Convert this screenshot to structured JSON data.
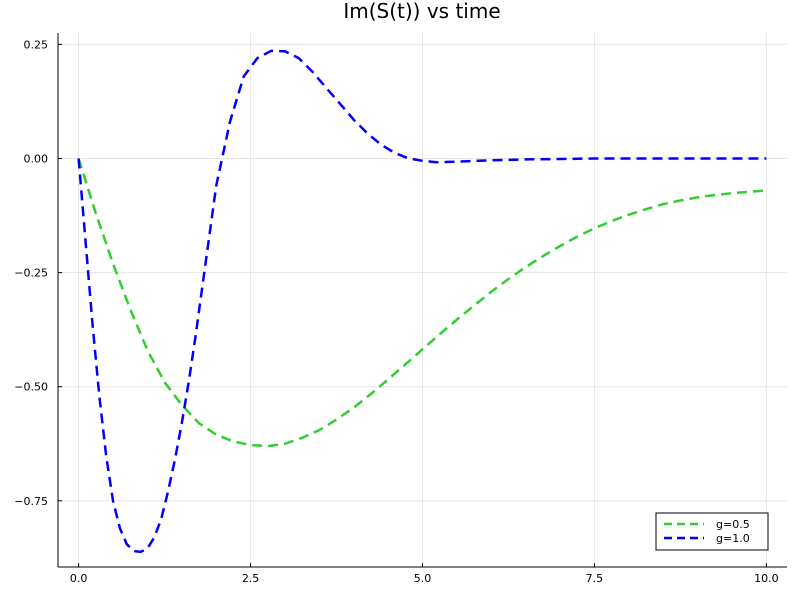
{
  "chart_data": {
    "type": "line",
    "title": "Im(S(t)) vs time",
    "xlabel": "",
    "ylabel": "",
    "xlim": [
      -0.3,
      10.3
    ],
    "ylim": [
      -0.895,
      0.275
    ],
    "x_ticks": [
      {
        "value": 0.0,
        "label": "0.0"
      },
      {
        "value": 2.5,
        "label": "2.5"
      },
      {
        "value": 5.0,
        "label": "5.0"
      },
      {
        "value": 7.5,
        "label": "7.5"
      },
      {
        "value": 10.0,
        "label": "10.0"
      }
    ],
    "y_ticks": [
      {
        "value": 0.25,
        "label": "0.25"
      },
      {
        "value": 0.0,
        "label": "0.00"
      },
      {
        "value": -0.25,
        "label": "−0.25"
      },
      {
        "value": -0.5,
        "label": "−0.50"
      },
      {
        "value": -0.75,
        "label": "−0.75"
      }
    ],
    "grid": true,
    "legend_position": "bottom-right",
    "series": [
      {
        "name": "g=0.5",
        "color": "#32cd32",
        "dash": "dashed",
        "x": [
          0.0,
          0.25,
          0.5,
          0.75,
          1.0,
          1.25,
          1.5,
          1.75,
          2.0,
          2.25,
          2.5,
          2.75,
          3.0,
          3.25,
          3.5,
          3.75,
          4.0,
          4.25,
          4.5,
          4.75,
          5.0,
          5.25,
          5.5,
          5.75,
          6.0,
          6.25,
          6.5,
          6.75,
          7.0,
          7.25,
          7.5,
          7.75,
          8.0,
          8.25,
          8.5,
          8.75,
          9.0,
          9.25,
          9.5,
          9.75,
          10.0
        ],
        "y": [
          0.0,
          -0.12,
          -0.23,
          -0.33,
          -0.42,
          -0.49,
          -0.54,
          -0.58,
          -0.605,
          -0.62,
          -0.628,
          -0.63,
          -0.625,
          -0.612,
          -0.595,
          -0.572,
          -0.546,
          -0.516,
          -0.484,
          -0.451,
          -0.418,
          -0.385,
          -0.353,
          -0.322,
          -0.292,
          -0.264,
          -0.238,
          -0.214,
          -0.192,
          -0.171,
          -0.153,
          -0.137,
          -0.123,
          -0.111,
          -0.1,
          -0.092,
          -0.085,
          -0.08,
          -0.076,
          -0.073,
          -0.07
        ]
      },
      {
        "name": "g=1.0",
        "color": "#0000ff",
        "dash": "dashed",
        "x": [
          0.0,
          0.1,
          0.2,
          0.3,
          0.4,
          0.5,
          0.6,
          0.7,
          0.8,
          0.9,
          1.0,
          1.1,
          1.2,
          1.3,
          1.4,
          1.5,
          1.6,
          1.7,
          1.8,
          1.9,
          2.0,
          2.2,
          2.4,
          2.6,
          2.8,
          3.0,
          3.2,
          3.4,
          3.6,
          3.8,
          4.0,
          4.2,
          4.4,
          4.6,
          4.8,
          5.0,
          5.2,
          5.5,
          5.8,
          6.0,
          6.5,
          7.0,
          7.5,
          8.0,
          9.0,
          10.0
        ],
        "y": [
          0.0,
          -0.18,
          -0.36,
          -0.52,
          -0.65,
          -0.75,
          -0.81,
          -0.845,
          -0.86,
          -0.862,
          -0.855,
          -0.83,
          -0.79,
          -0.73,
          -0.66,
          -0.58,
          -0.49,
          -0.39,
          -0.28,
          -0.17,
          -0.06,
          0.08,
          0.18,
          0.22,
          0.236,
          0.235,
          0.22,
          0.19,
          0.155,
          0.12,
          0.085,
          0.055,
          0.03,
          0.012,
          0.0,
          -0.005,
          -0.008,
          -0.007,
          -0.005,
          -0.004,
          -0.002,
          -0.001,
          0.0,
          0.0,
          0.0,
          0.0
        ]
      }
    ]
  }
}
